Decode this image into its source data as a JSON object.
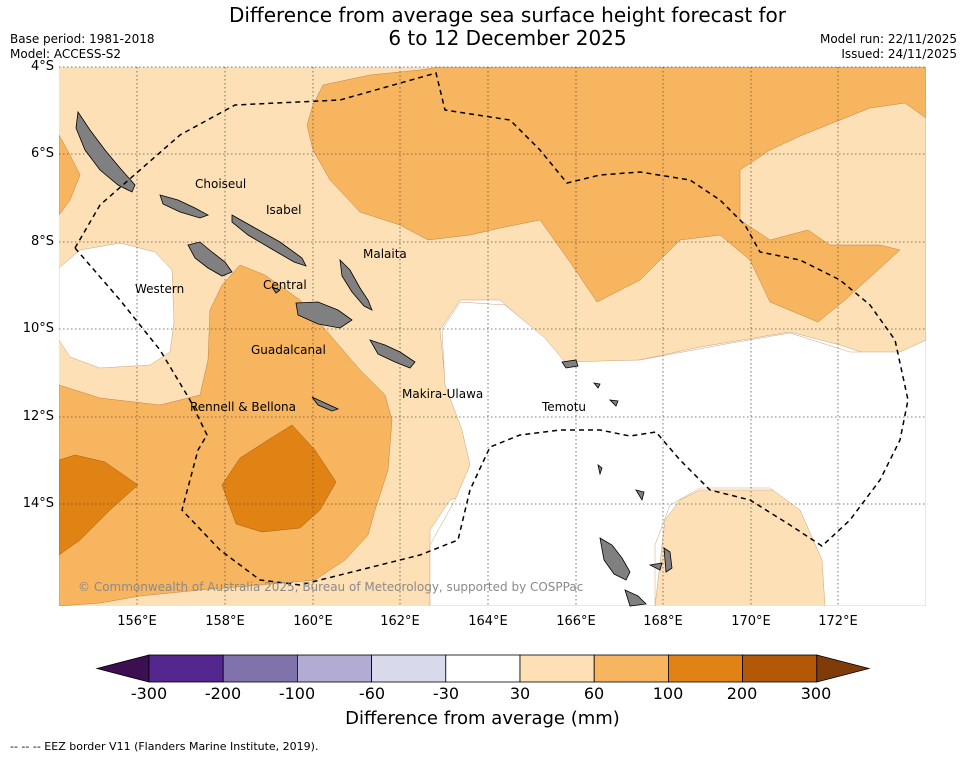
{
  "title": {
    "line1": "Difference from average sea surface height forecast for",
    "line2": "6 to 12 December 2025"
  },
  "meta": {
    "base_period": "Base period: 1981-2018",
    "model": "Model: ACCESS-S2",
    "model_run": "Model run: 22/11/2025",
    "issued": "Issued: 24/11/2025"
  },
  "axes": {
    "lat_labels": [
      "4°S",
      "6°S",
      "8°S",
      "10°S",
      "12°S",
      "14°S"
    ],
    "lon_labels": [
      "156°E",
      "158°E",
      "160°E",
      "162°E",
      "164°E",
      "166°E",
      "168°E",
      "170°E",
      "172°E"
    ]
  },
  "regions": [
    {
      "name": "Choiseul"
    },
    {
      "name": "Isabel"
    },
    {
      "name": "Malaita"
    },
    {
      "name": "Western"
    },
    {
      "name": "Central"
    },
    {
      "name": "Guadalcanal"
    },
    {
      "name": "Makira-Ulawa"
    },
    {
      "name": "Rennell & Bellona"
    },
    {
      "name": "Temotu"
    }
  ],
  "copyright": "© Commonwealth of Australia 2025, Bureau of Meteorology, supported by COSPPac",
  "colorbar": {
    "title": "Difference from average (mm)",
    "ticks": [
      "-300",
      "-200",
      "-100",
      "-60",
      "-30",
      "30",
      "60",
      "100",
      "200",
      "300"
    ],
    "colors": [
      "#3b0f52",
      "#54278f",
      "#8073ac",
      "#b2abd2",
      "#d8daeb",
      "#ffffff",
      "#fee0b6",
      "#f8b55f",
      "#e08214",
      "#b35806",
      "#7f3b08"
    ]
  },
  "legend_note": "--  --  -- EEZ border V11 (Flanders Marine Institute, 2019)."
}
